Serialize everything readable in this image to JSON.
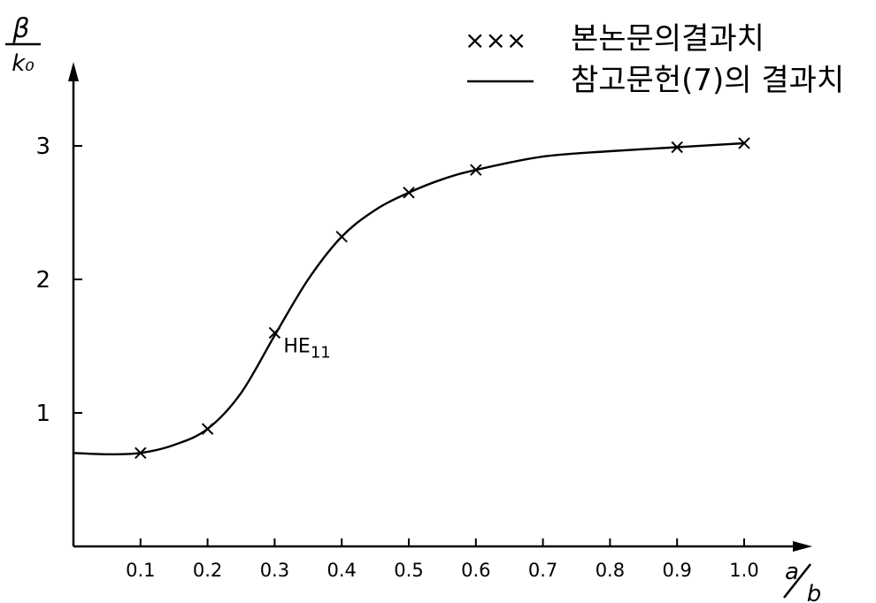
{
  "chart_data": {
    "type": "line",
    "title": "",
    "xlabel": {
      "numerator": "a",
      "denominator": "b"
    },
    "ylabel": {
      "numerator": "β",
      "denominator": "k₀"
    },
    "xlim": [
      0,
      1.0
    ],
    "ylim": [
      0,
      3.5
    ],
    "x_ticks": [
      "0.1",
      "0.2",
      "0.3",
      "0.4",
      "0.5",
      "0.6",
      "0.7",
      "0.8",
      "0.9",
      "1.0"
    ],
    "y_ticks": [
      "1",
      "2",
      "3"
    ],
    "grid": false,
    "legend": {
      "placement": "top-right",
      "entries": [
        {
          "marker": "×××",
          "label": "본논문의결과치"
        },
        {
          "marker": "line",
          "label": "참고문헌(7)의 결과치"
        }
      ]
    },
    "series": [
      {
        "style": "line",
        "x": [
          0.0,
          0.05,
          0.1,
          0.15,
          0.2,
          0.25,
          0.3,
          0.35,
          0.4,
          0.45,
          0.5,
          0.55,
          0.6,
          0.7,
          0.8,
          0.9,
          1.0
        ],
        "y": [
          0.7,
          0.69,
          0.7,
          0.76,
          0.88,
          1.15,
          1.58,
          2.0,
          2.32,
          2.52,
          2.65,
          2.75,
          2.82,
          2.92,
          2.96,
          2.99,
          3.02
        ]
      },
      {
        "style": "x-marker",
        "x": [
          0.1,
          0.2,
          0.3,
          0.4,
          0.5,
          0.6,
          0.9,
          1.0
        ],
        "y": [
          0.7,
          0.88,
          1.6,
          2.32,
          2.65,
          2.82,
          2.99,
          3.02
        ]
      }
    ],
    "annotations": [
      {
        "text": "HE",
        "subscript": "11",
        "x": 0.3,
        "y": 1.6
      }
    ]
  }
}
